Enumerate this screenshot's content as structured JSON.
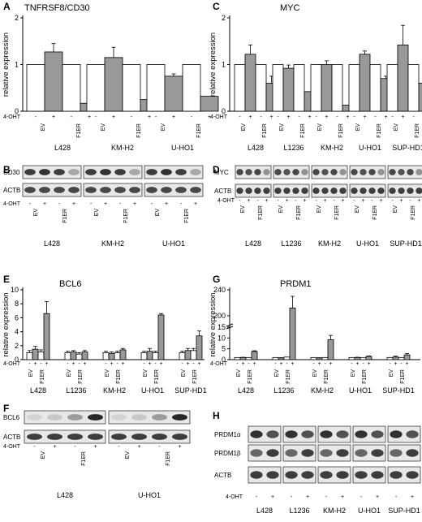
{
  "panels": {
    "A": {
      "letter": "A",
      "title": "TNFRSF8/CD30",
      "ylabel": "relative expression",
      "yticks": [
        "0",
        "1",
        "2"
      ],
      "ohtLabel": "4-OHT",
      "signs": [
        "-",
        "+",
        "-",
        "+"
      ],
      "ev": "EV",
      "f1er": "F1ER",
      "cells": [
        "L428",
        "KM-H2",
        "U-HO1"
      ]
    },
    "B": {
      "letter": "B",
      "bands": [
        "CD30",
        "ACTB"
      ],
      "ohtLabel": "4-OHT",
      "signs": [
        "-",
        "+",
        "-",
        "+"
      ],
      "ev": "EV",
      "f1er": "F1ER",
      "cells": [
        "L428",
        "KM-H2",
        "U-HO1"
      ]
    },
    "C": {
      "letter": "C",
      "title": "MYC",
      "ylabel": "relative expression",
      "yticks": [
        "0",
        "1",
        "2"
      ],
      "ohtLabel": "4-OHT",
      "signs": [
        "-",
        "+",
        "-",
        "+"
      ],
      "ev": "EV",
      "f1er": "F1ER",
      "cells": [
        "L428",
        "L1236",
        "KM-H2",
        "U-HO1",
        "SUP-HD1"
      ]
    },
    "D": {
      "letter": "D",
      "bands": [
        "MYC",
        "ACTB"
      ],
      "ohtLabel": "4-OHT",
      "signs": [
        "-",
        "+",
        "-",
        "+"
      ],
      "ev": "EV",
      "f1er": "F1ER",
      "cells": [
        "L428",
        "L1236",
        "KM-H2",
        "U-HO1",
        "SUP-HD1"
      ]
    },
    "E": {
      "letter": "E",
      "title": "BCL6",
      "ylabel": "relative expression",
      "yticks": [
        "0",
        "2",
        "4",
        "6",
        "8",
        "10"
      ],
      "ohtLabel": "4-OHT",
      "signs": [
        "-",
        "+",
        "-",
        "+"
      ],
      "ev": "EV",
      "f1er": "F1ER",
      "cells": [
        "L428",
        "L1236",
        "KM-H2",
        "U-HO1",
        "SUP-HD1"
      ]
    },
    "F": {
      "letter": "F",
      "bands": [
        "BCL6",
        "ACTB"
      ],
      "ohtLabel": "4-OHT",
      "signs": [
        "-",
        "+",
        "-",
        "+"
      ],
      "ev": "EV",
      "f1er": "F1ER",
      "cells": [
        "L428",
        "U-HO1"
      ]
    },
    "G": {
      "letter": "G",
      "title": "PRDM1",
      "ylabel": "relative expression",
      "yticks": [
        "0",
        "5",
        "10",
        "15",
        "200",
        "240"
      ],
      "ohtLabel": "4-OHT",
      "signs": [
        "-",
        "+",
        "-",
        "+"
      ],
      "ev": "EV",
      "f1er": "F1ER",
      "cells": [
        "L428",
        "L1236",
        "KM-H2",
        "U-HO1",
        "SUP-HD1"
      ]
    },
    "H": {
      "letter": "H",
      "bands": [
        "PRDM1α",
        "PRDM1β",
        "ACTB"
      ],
      "ohtLabel": "4-OHT",
      "signs": [
        "-",
        "+"
      ],
      "cells": [
        "L428",
        "L1236",
        "KM-H2",
        "U-HO1",
        "SUP-HD1"
      ]
    }
  },
  "colors": {
    "ev_bar": "#ffffff",
    "f1er_bar": "#999999",
    "axis": "#000000"
  },
  "chart_data": [
    {
      "panel": "A",
      "type": "bar",
      "title": "TNFRSF8/CD30",
      "ylabel": "relative expression",
      "ylim": [
        0,
        2
      ],
      "categories": [
        "L428",
        "KM-H2",
        "U-HO1"
      ],
      "series": [
        {
          "name": "EV",
          "values": [
            [
              1.0,
              1.27
            ],
            [
              1.0,
              1.15
            ],
            [
              1.0,
              0.75
            ]
          ],
          "errors": [
            [
              0,
              0.18
            ],
            [
              0,
              0.22
            ],
            [
              0,
              0.05
            ]
          ]
        },
        {
          "name": "F1ER",
          "values": [
            [
              1.0,
              0.17
            ],
            [
              1.0,
              0.25
            ],
            [
              1.0,
              0.32
            ]
          ],
          "errors": [
            [
              0,
              0
            ],
            [
              0,
              0.17
            ],
            [
              0,
              0
            ]
          ]
        }
      ]
    },
    {
      "panel": "C",
      "type": "bar",
      "title": "MYC",
      "ylabel": "relative expression",
      "ylim": [
        0,
        2
      ],
      "categories": [
        "L428",
        "L1236",
        "KM-H2",
        "U-HO1",
        "SUP-HD1"
      ],
      "series": [
        {
          "name": "EV",
          "values": [
            [
              1.0,
              1.22
            ],
            [
              1.0,
              0.92
            ],
            [
              1.0,
              1.0
            ],
            [
              1.0,
              1.22
            ],
            [
              1.0,
              1.42
            ]
          ],
          "errors": [
            [
              0,
              0.2
            ],
            [
              0,
              0.07
            ],
            [
              0,
              0.08
            ],
            [
              0,
              0.07
            ],
            [
              0,
              0.42
            ]
          ]
        },
        {
          "name": "F1ER",
          "values": [
            [
              1.0,
              0.6
            ],
            [
              1.0,
              0.42
            ],
            [
              1.0,
              0.13
            ],
            [
              1.0,
              0.7
            ],
            [
              1.0,
              0.6
            ]
          ],
          "errors": [
            [
              0,
              0.15
            ],
            [
              0,
              0
            ],
            [
              0,
              0
            ],
            [
              0,
              0.05
            ],
            [
              0,
              0.2
            ]
          ]
        }
      ]
    },
    {
      "panel": "E",
      "type": "bar",
      "title": "BCL6",
      "ylabel": "relative expression",
      "ylim": [
        0,
        10
      ],
      "categories": [
        "L428",
        "L1236",
        "KM-H2",
        "U-HO1",
        "SUP-HD1"
      ],
      "series": [
        {
          "name": "EV",
          "values": [
            [
              1.0,
              1.5
            ],
            [
              1.0,
              1.1
            ],
            [
              1.0,
              0.9
            ],
            [
              1.0,
              1.2
            ],
            [
              1.0,
              1.3
            ]
          ],
          "errors": [
            [
              0.3,
              0.4
            ],
            [
              0.2,
              0.2
            ],
            [
              0.2,
              0.2
            ],
            [
              0.2,
              0.4
            ],
            [
              0.2,
              0.3
            ]
          ]
        },
        {
          "name": "F1ER",
          "values": [
            [
              1.1,
              6.6
            ],
            [
              0.8,
              1.1
            ],
            [
              1.0,
              1.4
            ],
            [
              1.0,
              6.4
            ],
            [
              1.3,
              3.4
            ]
          ],
          "errors": [
            [
              0.3,
              1.7
            ],
            [
              0.2,
              0.2
            ],
            [
              0.2,
              0.2
            ],
            [
              0.2,
              0.2
            ],
            [
              0.3,
              0.7
            ]
          ]
        }
      ]
    },
    {
      "panel": "G",
      "type": "bar",
      "title": "PRDM1",
      "ylabel": "relative expression",
      "ylim": [
        0,
        240
      ],
      "categories": [
        "L428",
        "L1236",
        "KM-H2",
        "U-HO1",
        "SUP-HD1"
      ],
      "series": [
        {
          "name": "EV",
          "values": [
            [
              1.0,
              1.0
            ],
            [
              1.0,
              0.8
            ],
            [
              1.0,
              0.8
            ],
            [
              1.0,
              1.0
            ],
            [
              1.0,
              1.2
            ]
          ],
          "errors": [
            [
              0,
              0.1
            ],
            [
              0,
              0.1
            ],
            [
              0,
              0.1
            ],
            [
              0,
              0.1
            ],
            [
              0,
              0.4
            ]
          ]
        },
        {
          "name": "F1ER",
          "values": [
            [
              1.0,
              3.8
            ],
            [
              1.2,
              212
            ],
            [
              1.0,
              9.2
            ],
            [
              1.0,
              1.5
            ],
            [
              1.0,
              2.2
            ]
          ],
          "errors": [
            [
              0,
              0.3
            ],
            [
              0,
              18
            ],
            [
              0,
              2.0
            ],
            [
              0,
              0.2
            ],
            [
              0,
              0.6
            ]
          ]
        }
      ]
    }
  ]
}
